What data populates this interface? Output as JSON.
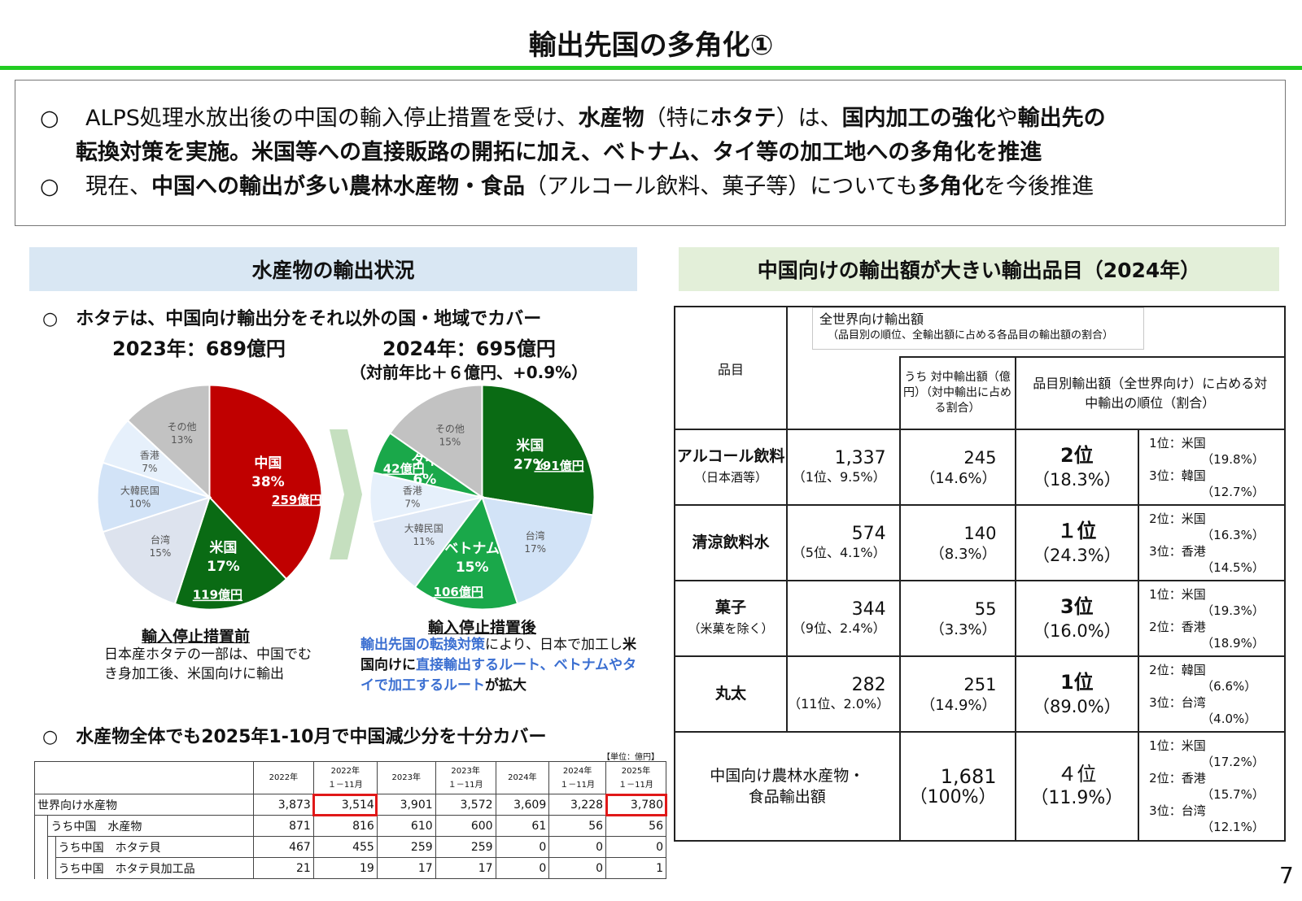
{
  "title": "輸出先国の多角化①",
  "summary": {
    "bullet": "○",
    "l1": [
      {
        "t": "ALPS処理水放出後の中国の輸入停止措置を受け、",
        "b": false
      },
      {
        "t": "水産物",
        "b": true
      },
      {
        "t": "（特に",
        "b": false
      },
      {
        "t": "ホタテ",
        "b": true
      },
      {
        "t": "）は、",
        "b": false
      },
      {
        "t": "国内加工の強化",
        "b": true
      },
      {
        "t": "や",
        "b": false
      },
      {
        "t": "輸出先の",
        "b": true
      }
    ],
    "l2": [
      {
        "t": "転換対策を実施。米国等への直接販路の開拓に加え、ベトナム、タイ等の加工地への多角化を推進",
        "b": true
      }
    ],
    "l3": [
      {
        "t": "現在、",
        "b": false
      },
      {
        "t": "中国への輸出が多い農林水産物・食品",
        "b": true
      },
      {
        "t": "（アルコール飲料、菓子等）についても",
        "b": false
      },
      {
        "t": "多角化",
        "b": true
      },
      {
        "t": "を今後推進",
        "b": false
      }
    ]
  },
  "left": {
    "band": "水産物の輸出状況",
    "h1": "○　ホタテは、中国向け輸出分をそれ以外の国・地域でカバー",
    "year1": "2023年：689億円",
    "year2": "2024年：695億円",
    "year2_sub": "（対前年比＋６億円、+0.9%）",
    "cap1_title": "輸入停止措置前",
    "cap1_body": "日本産ホタテの一部は、中国でむき身加工後、米国向けに輸出",
    "cap2_title": "輸入停止措置後",
    "cap2_body": [
      {
        "t": "輸出先国の転換対策",
        "c": "blue"
      },
      {
        "t": "により、日本で加工し",
        "c": ""
      },
      {
        "t": "米国向けに",
        "c": "bk"
      },
      {
        "t": "直接輸出するルート、",
        "c": "blue"
      },
      {
        "t": "ベトナムやタイで加工するルート",
        "c": "blue"
      },
      {
        "t": "が拡大",
        "c": "bk"
      }
    ],
    "h2": "○　水産物全体でも2025年1-10月で中国減少分を十分カバー",
    "unit": "【単位：億円】"
  },
  "chart_data": [
    {
      "type": "pie",
      "title": "2023年：689億円",
      "slices": [
        {
          "name": "中国",
          "percent": 38,
          "amount": "259億円",
          "color": "#c00000",
          "text": "#ffffff"
        },
        {
          "name": "米国",
          "percent": 17,
          "amount": "119億円",
          "color": "#0a6b14",
          "text": "#ffffff"
        },
        {
          "name": "台湾",
          "percent": 15,
          "color": "#dde3ee",
          "text": "#555555"
        },
        {
          "name": "大韓民国",
          "percent": 10,
          "color": "#d2e3f7",
          "text": "#555555"
        },
        {
          "name": "香港",
          "percent": 7,
          "color": "#e6f0fb",
          "text": "#555555"
        },
        {
          "name": "その他",
          "percent": 13,
          "color": "#c2c2c2",
          "text": "#555555"
        }
      ]
    },
    {
      "type": "pie",
      "title": "2024年：695億円",
      "slices": [
        {
          "name": "米国",
          "percent": 27,
          "amount": "191億円",
          "color": "#0a6b14",
          "text": "#ffffff"
        },
        {
          "name": "台湾",
          "percent": 17,
          "color": "#d2e3f7",
          "text": "#555555"
        },
        {
          "name": "ベトナム",
          "percent": 15,
          "amount": "106億円",
          "color": "#1aa84a",
          "text": "#ffffff"
        },
        {
          "name": "大韓民国",
          "percent": 11,
          "color": "#dde7f5",
          "text": "#555555"
        },
        {
          "name": "香港",
          "percent": 7,
          "color": "#e6f0fb",
          "text": "#555555"
        },
        {
          "name": "タイ",
          "percent": 6,
          "amount": "42億円",
          "color": "#1aa84a",
          "text": "#ffffff"
        },
        {
          "name": "その他",
          "percent": 15,
          "color": "#c2c2c2",
          "text": "#555555"
        }
      ]
    },
    {
      "type": "table",
      "columns": [
        [
          "2022年"
        ],
        [
          "2022年",
          "１－11月"
        ],
        [
          "2023年"
        ],
        [
          "2023年",
          "１－11月"
        ],
        [
          "2024年"
        ],
        [
          "2024年",
          "１－11月"
        ],
        [
          "2025年",
          "１－11月"
        ]
      ],
      "rows": [
        {
          "label": "世界向け水産物",
          "values": [
            "3,873",
            "3,514",
            "3,901",
            "3,572",
            "3,609",
            "3,228",
            "3,780"
          ]
        },
        {
          "label": "うち中国　水産物",
          "values": [
            "871",
            "816",
            "610",
            "600",
            "61",
            "56",
            "56"
          ]
        },
        {
          "label": "うち中国　ホタテ貝",
          "values": [
            "467",
            "455",
            "259",
            "259",
            "0",
            "0",
            "0"
          ]
        },
        {
          "label": "うち中国　ホタテ貝加工品",
          "values": [
            "21",
            "19",
            "17",
            "17",
            "0",
            "0",
            "1"
          ]
        }
      ],
      "highlighted": [
        [
          0,
          1
        ],
        [
          0,
          6
        ]
      ]
    }
  ],
  "right": {
    "band": "中国向けの輸出額が大きい輸出品目（2024年）",
    "hdr_item": "品目",
    "hdr_world": "全世界向け輸出額",
    "hdr_world_sub": "（品目別の順位、全輸出額に占める各品目の輸出額の割合）",
    "hdr_china": "うち 対中輸出額（億円）（対中輸出に占める割合）",
    "hdr_rank": "品目別輸出額（全世界向け）に占める対中輸出の順位（割合）",
    "rows": [
      {
        "item": "アルコール飲料",
        "item_sub": "（日本酒等）",
        "world": "1,337",
        "world_sub": "（1位、9.5%）",
        "china": "245",
        "china_sub": "（14.6%）",
        "rank": "2位",
        "rank_sub": "（18.3%）",
        "r1": "1位：米国",
        "r1p": "（19.8%）",
        "r2": "3位：韓国",
        "r2p": "（12.7%）"
      },
      {
        "item": "清涼飲料水",
        "item_sub": "",
        "world": "574",
        "world_sub": "（5位、4.1%）",
        "china": "140",
        "china_sub": "（8.3%）",
        "rank": "１位",
        "rank_sub": "（24.3%）",
        "r1": "2位：米国",
        "r1p": "（16.3%）",
        "r2": "3位：香港",
        "r2p": "（14.5%）"
      },
      {
        "item": "菓子",
        "item_sub": "（米菓を除く）",
        "world": "344",
        "world_sub": "（9位、2.4%）",
        "china": "55",
        "china_sub": "（3.3%）",
        "rank": "3位",
        "rank_sub": "（16.0%）",
        "r1": "1位：米国",
        "r1p": "（19.3%）",
        "r2": "2位：香港",
        "r2p": "（18.9%）"
      },
      {
        "item": "丸太",
        "item_sub": "",
        "world": "282",
        "world_sub": "（11位、2.0%）",
        "china": "251",
        "china_sub": "（14.9%）",
        "rank": "1位",
        "rank_sub": "（89.0%）",
        "r1": "2位：韓国",
        "r1p": "（6.6%）",
        "r2": "3位：台湾",
        "r2p": "（4.0%）"
      }
    ],
    "total": {
      "label": "中国向け農林水産物・食品輸出額",
      "china": "1,681",
      "china_sub": "（100%）",
      "rank": "４位",
      "rank_sub": "（11.9%）",
      "r1": "1位：米国",
      "r1p": "（17.2%）",
      "r2": "2位：香港",
      "r2p": "（15.7%）",
      "r3": "3位：台湾",
      "r3p": "（12.1%）"
    }
  },
  "page_number": "7"
}
